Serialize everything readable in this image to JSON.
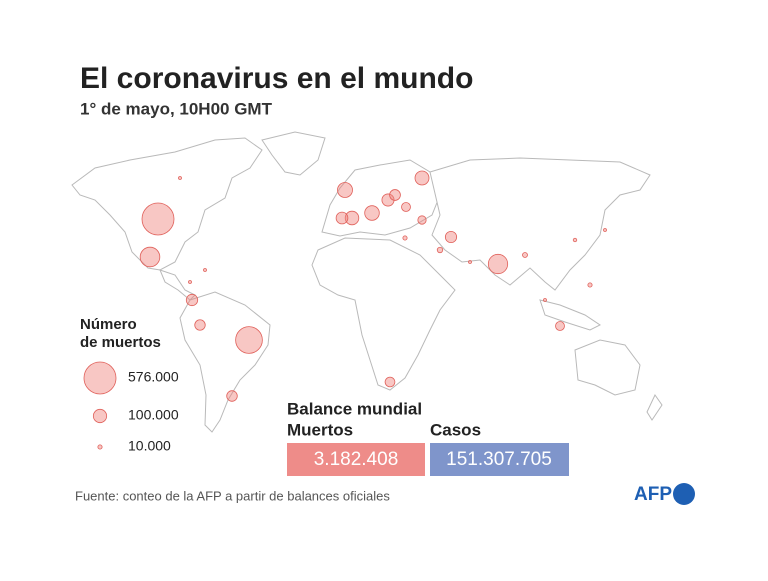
{
  "header": {
    "title": "El coronavirus en el mundo",
    "subtitle": "1° de mayo, 10H00 GMT"
  },
  "legend": {
    "title_line1": "Número",
    "title_line2": "de muertos",
    "items": [
      {
        "value": 576000,
        "label": "576.000"
      },
      {
        "value": 100000,
        "label": "100.000"
      },
      {
        "value": 10000,
        "label": "10.000"
      }
    ]
  },
  "map": {
    "deaths": [
      576000,
      403000,
      217000,
      211000,
      127000,
      120000,
      110000,
      104000,
      83000,
      78000,
      73000,
      72000,
      63000,
      62000,
      66000,
      54000,
      45000,
      45000,
      39000,
      17000,
      14000,
      10000,
      10000,
      7000,
      5000,
      4000,
      3000,
      3000,
      2000,
      2000
    ]
  },
  "balance": {
    "title": "Balance mundial",
    "deaths_label": "Muertos",
    "deaths": "3.182.408",
    "cases_label": "Casos",
    "cases": "151.307.705"
  },
  "footer": {
    "source": "Fuente: conteo de la AFP a partir de balances oficiales",
    "logo": "AFP"
  }
}
